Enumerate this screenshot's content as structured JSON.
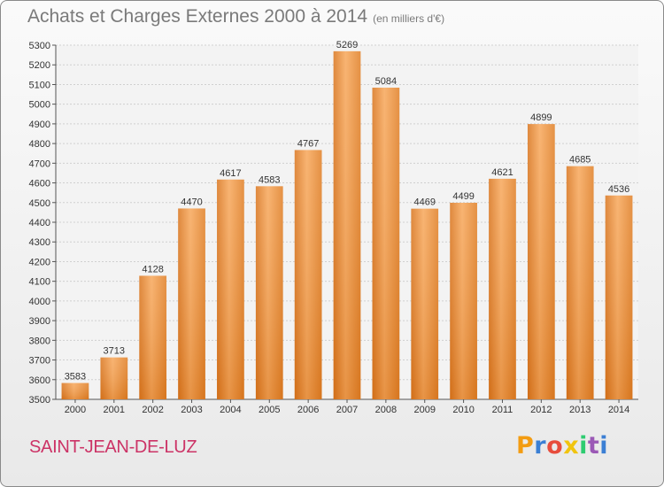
{
  "header": {
    "title": "Achats et Charges Externes 2000 à 2014",
    "subtitle": "(en milliers d'€)"
  },
  "footer": {
    "city": "SAINT-JEAN-DE-LUZ",
    "logo_text": "Proxiti",
    "logo_colors": [
      "#f39c12",
      "#3b7fd4",
      "#e74c3c",
      "#f1c40f",
      "#2ecc71",
      "#9b59b6",
      "#3b7fd4"
    ]
  },
  "chart_data": {
    "type": "bar",
    "title": "Achats et Charges Externes 2000 à 2014",
    "subtitle": "(en milliers d'€)",
    "categories": [
      "2000",
      "2001",
      "2002",
      "2003",
      "2004",
      "2005",
      "2006",
      "2007",
      "2008",
      "2009",
      "2010",
      "2011",
      "2012",
      "2013",
      "2014"
    ],
    "values": [
      3583,
      3713,
      4128,
      4470,
      4617,
      4583,
      4767,
      5269,
      5084,
      4469,
      4499,
      4621,
      4899,
      4685,
      4536
    ],
    "ylim": [
      3500,
      5300
    ],
    "yticks": [
      3500,
      3600,
      3700,
      3800,
      3900,
      4000,
      4100,
      4200,
      4300,
      4400,
      4500,
      4600,
      4700,
      4800,
      4900,
      5000,
      5100,
      5200,
      5300
    ],
    "xlabel": "",
    "ylabel": "",
    "grid": true,
    "bar_color": "#e8872a",
    "bar_color_light": "#f6a95a"
  }
}
